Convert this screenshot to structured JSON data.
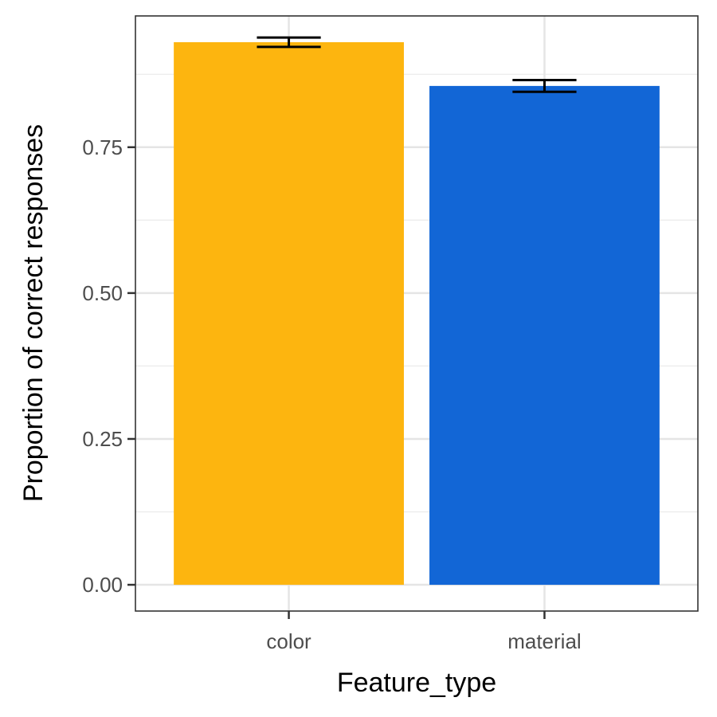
{
  "chart_data": {
    "type": "bar",
    "categories": [
      "color",
      "material"
    ],
    "values": [
      0.93,
      0.855
    ],
    "error": [
      {
        "low": 0.922,
        "high": 0.938
      },
      {
        "low": 0.845,
        "high": 0.865
      }
    ],
    "colors": [
      "#FDB50F",
      "#1266D6"
    ],
    "xlabel": "Feature_type",
    "ylabel": "Proportion of correct responses",
    "ylim": [
      -0.045,
      0.975
    ],
    "yticks": [
      0.0,
      0.25,
      0.5,
      0.75
    ],
    "ytick_labels": [
      "0.00",
      "0.25",
      "0.50",
      "0.75"
    ],
    "grid": true,
    "legend": "none"
  }
}
